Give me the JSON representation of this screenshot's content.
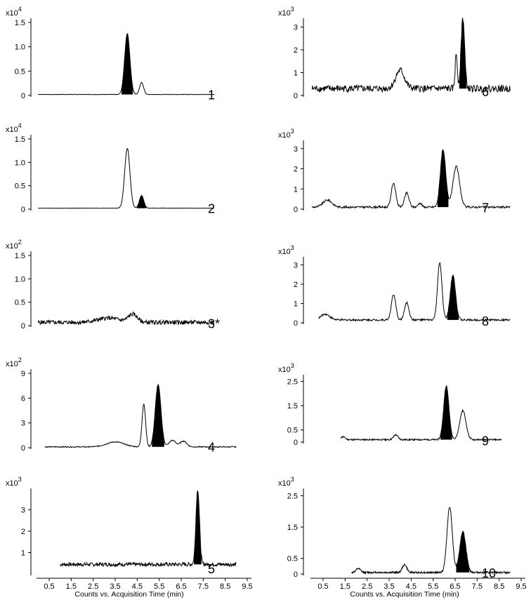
{
  "figure": {
    "xlabel": "Counts vs. Acquisition Time (min)",
    "xticks": [
      "0.5",
      "1.5",
      "2.5",
      "3.5",
      "4.5",
      "5.5",
      "6.5",
      "7.5",
      "8.5",
      "9.5"
    ],
    "colors": {
      "trace": "#000000",
      "fill": "#000000"
    }
  },
  "chart_data": [
    {
      "type": "line",
      "label": "1",
      "multiplier": "x10",
      "exponent": "4",
      "ylim": [
        0,
        1.5
      ],
      "yticks": [
        "0",
        "0.5",
        "1.0",
        "1.5"
      ],
      "xrange": [
        0,
        8
      ],
      "baseline": 0.02,
      "noise": 0.004,
      "peaks": [
        {
          "x": 4.05,
          "h": 1.25,
          "w": 0.12,
          "filled": true
        },
        {
          "x": 4.7,
          "h": 0.25,
          "w": 0.09
        }
      ]
    },
    {
      "type": "line",
      "label": "2",
      "multiplier": "x10",
      "exponent": "4",
      "ylim": [
        0,
        1.5
      ],
      "yticks": [
        "0",
        "0.5",
        "1.0",
        "1.5"
      ],
      "xrange": [
        0,
        8
      ],
      "baseline": 0.02,
      "noise": 0.004,
      "peaks": [
        {
          "x": 4.05,
          "h": 1.28,
          "w": 0.12
        },
        {
          "x": 4.7,
          "h": 0.27,
          "w": 0.1,
          "filled": true
        }
      ]
    },
    {
      "type": "line",
      "label": "3*",
      "multiplier": "x10",
      "exponent": "2",
      "ylim": [
        0,
        1.5
      ],
      "yticks": [
        "0",
        "0.5",
        "1.0",
        "1.5"
      ],
      "xrange": [
        0,
        8
      ],
      "baseline": 0.07,
      "noise": 0.045,
      "peaks": [
        {
          "x": 3.2,
          "h": 0.09,
          "w": 0.5
        },
        {
          "x": 4.3,
          "h": 0.17,
          "w": 0.2
        }
      ]
    },
    {
      "type": "line",
      "label": "4",
      "multiplier": "x10",
      "exponent": "2",
      "ylim": [
        0,
        9
      ],
      "yticks": [
        "0",
        "3",
        "6",
        "9"
      ],
      "xrange": [
        0.3,
        9
      ],
      "baseline": 0.1,
      "noise": 0.06,
      "peaks": [
        {
          "x": 4.8,
          "h": 5.2,
          "w": 0.08
        },
        {
          "x": 5.45,
          "h": 7.5,
          "w": 0.13,
          "filled": true
        },
        {
          "x": 3.5,
          "h": 0.6,
          "w": 0.4
        },
        {
          "x": 6.1,
          "h": 0.8,
          "w": 0.15
        },
        {
          "x": 6.6,
          "h": 0.7,
          "w": 0.15
        }
      ]
    },
    {
      "type": "line",
      "label": "5",
      "multiplier": "x10",
      "exponent": "3",
      "ylim": [
        0,
        3.8
      ],
      "yticks": [
        "1",
        "2",
        "3"
      ],
      "xrange": [
        1,
        9
      ],
      "baseline": 0.45,
      "noise": 0.09,
      "peaks": [
        {
          "x": 7.25,
          "h": 3.5,
          "w": 0.08,
          "filled": true
        }
      ]
    },
    {
      "type": "line",
      "label": "6",
      "multiplier": "x10",
      "exponent": "3",
      "ylim": [
        0,
        3.2
      ],
      "yticks": [
        "0",
        "1",
        "2",
        "3"
      ],
      "xrange": [
        0,
        9
      ],
      "baseline": 0.3,
      "noise": 0.15,
      "peaks": [
        {
          "x": 6.85,
          "h": 3.1,
          "w": 0.08,
          "filled": true
        },
        {
          "x": 6.55,
          "h": 1.5,
          "w": 0.05
        },
        {
          "x": 4.0,
          "h": 0.8,
          "w": 0.2
        }
      ]
    },
    {
      "type": "line",
      "label": "7",
      "multiplier": "x10",
      "exponent": "3",
      "ylim": [
        0,
        3.2
      ],
      "yticks": [
        "0",
        "1",
        "2",
        "3"
      ],
      "xrange": [
        0,
        9
      ],
      "baseline": 0.1,
      "noise": 0.05,
      "peaks": [
        {
          "x": 0.7,
          "h": 0.35,
          "w": 0.2
        },
        {
          "x": 3.7,
          "h": 1.2,
          "w": 0.1
        },
        {
          "x": 4.3,
          "h": 0.7,
          "w": 0.1
        },
        {
          "x": 4.9,
          "h": 0.2,
          "w": 0.08
        },
        {
          "x": 5.95,
          "h": 2.85,
          "w": 0.12,
          "filled": true
        },
        {
          "x": 6.55,
          "h": 2.0,
          "w": 0.15
        }
      ]
    },
    {
      "type": "line",
      "label": "8",
      "multiplier": "x10",
      "exponent": "3",
      "ylim": [
        0,
        3.2
      ],
      "yticks": [
        "0",
        "1",
        "2",
        "3"
      ],
      "xrange": [
        0.3,
        9
      ],
      "baseline": 0.15,
      "noise": 0.05,
      "peaks": [
        {
          "x": 0.6,
          "h": 0.3,
          "w": 0.2
        },
        {
          "x": 3.7,
          "h": 1.3,
          "w": 0.1
        },
        {
          "x": 4.3,
          "h": 0.9,
          "w": 0.1
        },
        {
          "x": 5.8,
          "h": 2.95,
          "w": 0.1
        },
        {
          "x": 6.4,
          "h": 2.3,
          "w": 0.12,
          "filled": true
        }
      ]
    },
    {
      "type": "line",
      "label": "9",
      "multiplier": "x10",
      "exponent": "3",
      "ylim": [
        0,
        2.6
      ],
      "yticks": [
        "0",
        "0.5",
        "1.5",
        "2.5"
      ],
      "xrange": [
        1.3,
        8.6
      ],
      "baseline": 0.1,
      "noise": 0.03,
      "peaks": [
        {
          "x": 1.4,
          "h": 0.12,
          "w": 0.1
        },
        {
          "x": 3.8,
          "h": 0.2,
          "w": 0.1
        },
        {
          "x": 6.1,
          "h": 2.2,
          "w": 0.12,
          "filled": true
        },
        {
          "x": 6.85,
          "h": 1.2,
          "w": 0.14
        }
      ]
    },
    {
      "type": "line",
      "label": "10",
      "multiplier": "x10",
      "exponent": "3",
      "ylim": [
        0,
        2.6
      ],
      "yticks": [
        "0",
        "0.5",
        "1.5",
        "2.5"
      ],
      "xrange": [
        1.8,
        9
      ],
      "baseline": 0.05,
      "noise": 0.03,
      "peaks": [
        {
          "x": 2.1,
          "h": 0.12,
          "w": 0.1
        },
        {
          "x": 4.2,
          "h": 0.25,
          "w": 0.1
        },
        {
          "x": 6.25,
          "h": 2.1,
          "w": 0.12
        },
        {
          "x": 6.85,
          "h": 1.3,
          "w": 0.14,
          "filled": true
        }
      ]
    }
  ]
}
